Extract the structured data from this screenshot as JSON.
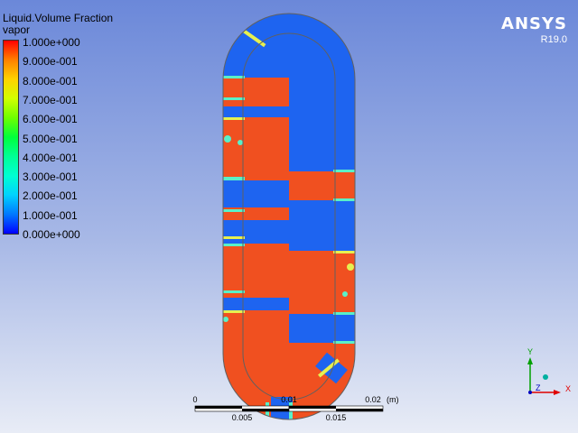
{
  "legend": {
    "title": "Liquid.Volume Fraction",
    "subtitle": "vapor",
    "labels": [
      "1.000e+000",
      "9.000e-001",
      "8.000e-001",
      "7.000e-001",
      "6.000e-001",
      "5.000e-001",
      "4.000e-001",
      "3.000e-001",
      "2.000e-001",
      "1.000e-001",
      "0.000e+000"
    ],
    "colors": [
      "#ff0000",
      "#ff8000",
      "#ffd200",
      "#d2ff00",
      "#6eff00",
      "#00ff3c",
      "#00ff96",
      "#00ffd2",
      "#00d2ff",
      "#0078ff",
      "#0000ff"
    ]
  },
  "brand": {
    "name": "ANSYS",
    "version": "R19.0"
  },
  "scale_bar": {
    "top_labels": [
      "0",
      "0.01",
      "0.02"
    ],
    "unit": "(m)",
    "bottom_labels": [
      "0.005",
      "0.015"
    ]
  },
  "axes": {
    "y": "Y",
    "z": "Z",
    "x": "X"
  },
  "colors": {
    "liquid": "#f05020",
    "vapor": "#1e64f0",
    "interface_light": "#5af0c8",
    "interface_yellow": "#e6f050",
    "outline": "#606060"
  }
}
